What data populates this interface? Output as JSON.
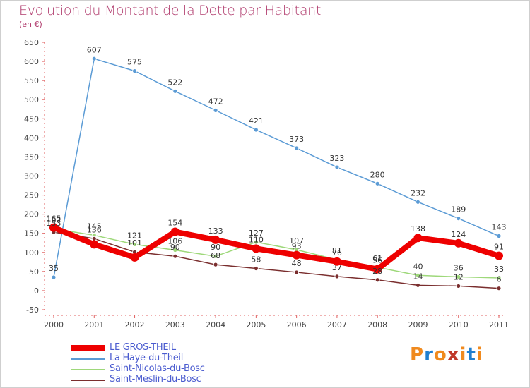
{
  "title": "Evolution du Montant de la Dette par Habitant",
  "subtitle": "(en €)",
  "logo": {
    "text": "Proxiti",
    "colors": [
      "#f08a1e",
      "#1f7fd0",
      "#f08a1e",
      "#c0392b",
      "#f08a1e",
      "#1f7fd0",
      "#f08a1e"
    ]
  },
  "chart_data": {
    "type": "line",
    "x": [
      "2000",
      "2001",
      "2002",
      "2003",
      "2004",
      "2005",
      "2006",
      "2007",
      "2008",
      "2009",
      "2010",
      "2011"
    ],
    "ylim": [
      -50,
      650
    ],
    "yticks": [
      -50,
      0,
      50,
      100,
      150,
      200,
      250,
      300,
      350,
      400,
      450,
      500,
      550,
      600,
      650
    ],
    "grid": false,
    "legend_position": "bottom-left",
    "series": [
      {
        "name": "LE GROS-THEIL",
        "color": "#ee0000",
        "values": [
          165,
          121,
          87,
          154,
          133,
          110,
          93,
          76,
          56,
          138,
          124,
          91
        ],
        "labels": [
          "165",
          "",
          "",
          "154",
          "133",
          "110",
          "93",
          "76",
          "56",
          "138",
          "124",
          "91"
        ]
      },
      {
        "name": "La Haye-du-Theil",
        "color": "#5b9bd5",
        "values": [
          35,
          607,
          575,
          522,
          472,
          421,
          373,
          323,
          280,
          232,
          189,
          143
        ],
        "labels": [
          "35",
          "607",
          "575",
          "522",
          "472",
          "421",
          "373",
          "323",
          "280",
          "232",
          "189",
          "143"
        ]
      },
      {
        "name": "Saint-Nicolas-du-Bosc",
        "color": "#9ed87a",
        "values": [
          162,
          145,
          121,
          106,
          90,
          127,
          107,
          81,
          61,
          40,
          36,
          33
        ],
        "labels": [
          "162",
          "145",
          "121",
          "106",
          "90",
          "127",
          "107",
          "81",
          "61",
          "40",
          "36",
          "33"
        ]
      },
      {
        "name": "Saint-Meslin-du-Bosc",
        "color": "#7a2e2e",
        "values": [
          153,
          136,
          101,
          90,
          68,
          58,
          48,
          37,
          28,
          14,
          12,
          6
        ],
        "labels": [
          "153",
          "136",
          "101",
          "90",
          "68",
          "58",
          "48",
          "37",
          "28",
          "14",
          "12",
          "6"
        ]
      }
    ]
  }
}
